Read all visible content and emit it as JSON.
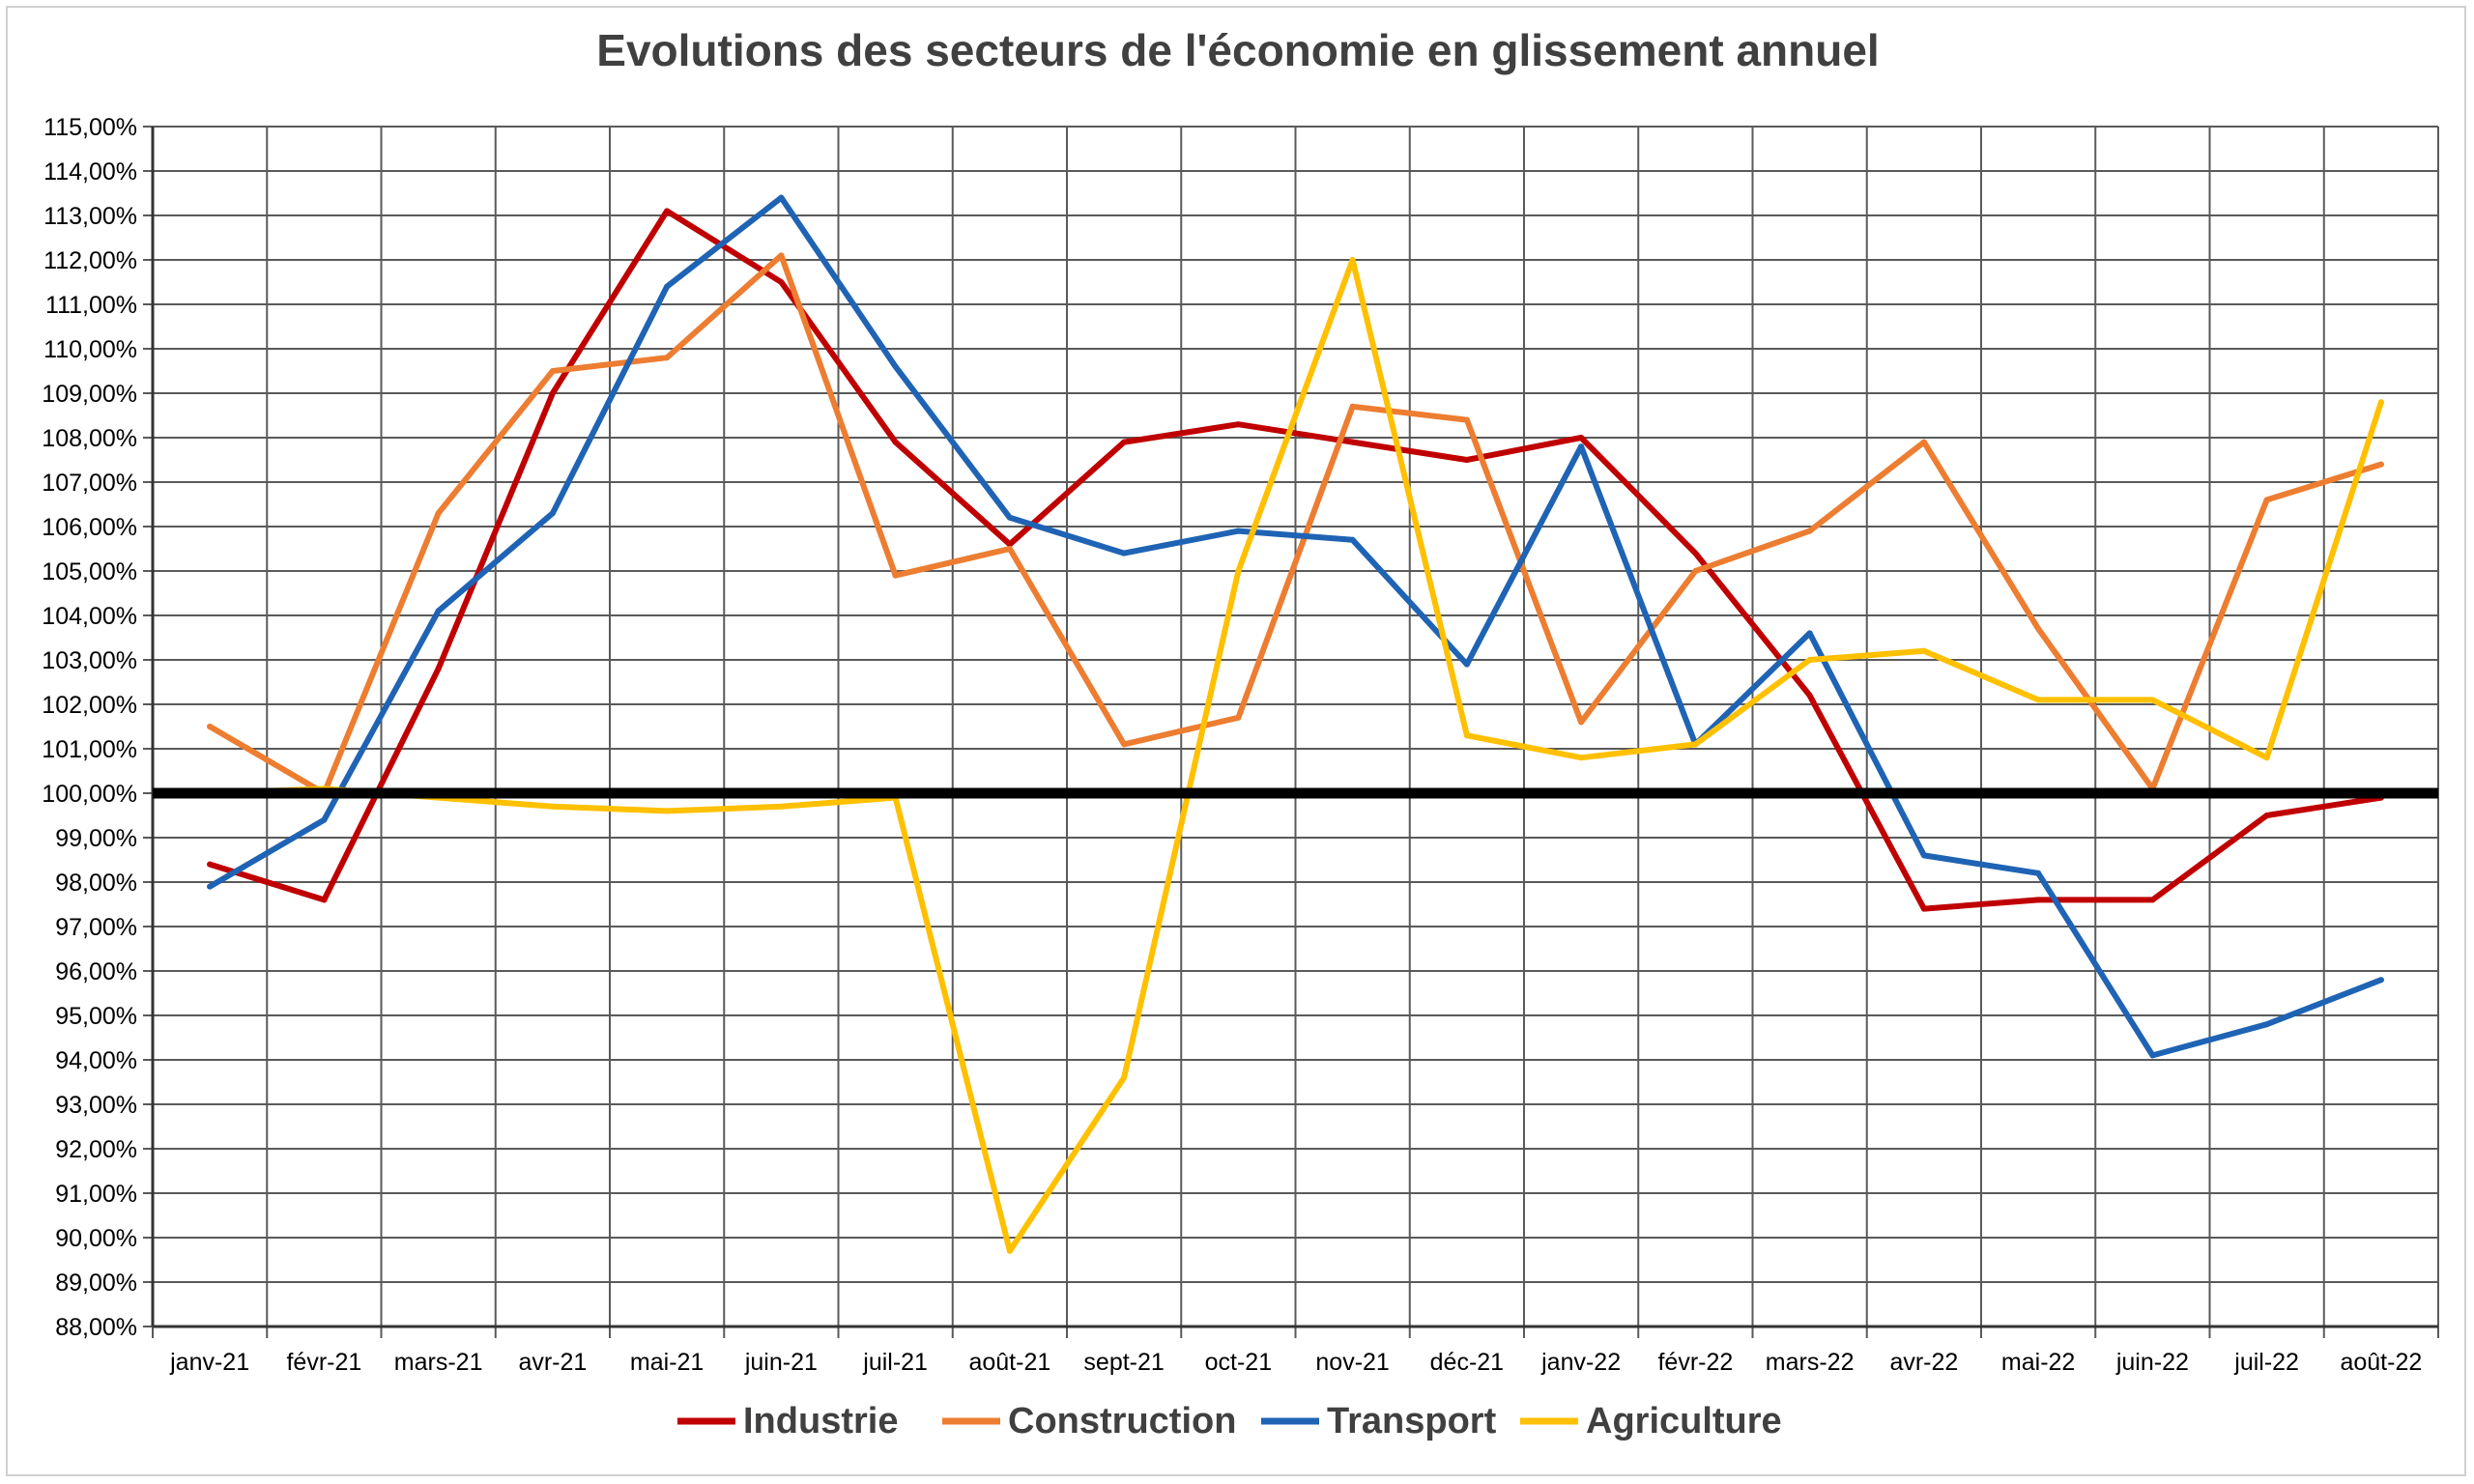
{
  "chart_data": {
    "type": "line",
    "title": "Evolutions des secteurs de l'économie en glissement annuel",
    "xlabel": "",
    "ylabel": "",
    "ylim": [
      88,
      115
    ],
    "ytick_step": 1,
    "ytick_suffix": "%",
    "reference_line": 100,
    "grid": true,
    "legend_position": "bottom",
    "categories": [
      "janv-21",
      "févr-21",
      "mars-21",
      "avr-21",
      "mai-21",
      "juin-21",
      "juil-21",
      "août-21",
      "sept-21",
      "oct-21",
      "nov-21",
      "déc-21",
      "janv-22",
      "févr-22",
      "mars-22",
      "avr-22",
      "mai-22",
      "juin-22",
      "juil-22",
      "août-22"
    ],
    "series": [
      {
        "name": "Industrie",
        "color": "#C00000",
        "values": [
          98.4,
          97.6,
          102.8,
          109.0,
          113.1,
          111.5,
          107.9,
          105.6,
          107.9,
          108.3,
          107.9,
          107.5,
          108.0,
          105.4,
          102.2,
          97.4,
          97.6,
          97.6,
          99.5,
          99.9
        ]
      },
      {
        "name": "Construction",
        "color": "#ED7D31",
        "values": [
          101.5,
          100.0,
          106.3,
          109.5,
          109.8,
          112.1,
          104.9,
          105.5,
          101.1,
          101.7,
          108.7,
          108.4,
          101.6,
          105.0,
          105.9,
          107.9,
          103.7,
          100.1,
          106.6,
          107.4
        ]
      },
      {
        "name": "Transport",
        "color": "#1F63B4",
        "values": [
          97.9,
          99.4,
          104.1,
          106.3,
          111.4,
          113.4,
          109.6,
          106.2,
          105.4,
          105.9,
          105.7,
          102.9,
          107.8,
          101.1,
          103.6,
          98.6,
          98.2,
          94.1,
          94.8,
          95.8
        ]
      },
      {
        "name": "Agriculture",
        "color": "#FFC000",
        "values": [
          100.0,
          100.1,
          99.9,
          99.7,
          99.6,
          99.7,
          99.9,
          89.7,
          93.6,
          105.0,
          112.0,
          101.3,
          100.8,
          101.1,
          103.0,
          103.2,
          102.1,
          102.1,
          100.8,
          108.8
        ]
      }
    ]
  }
}
